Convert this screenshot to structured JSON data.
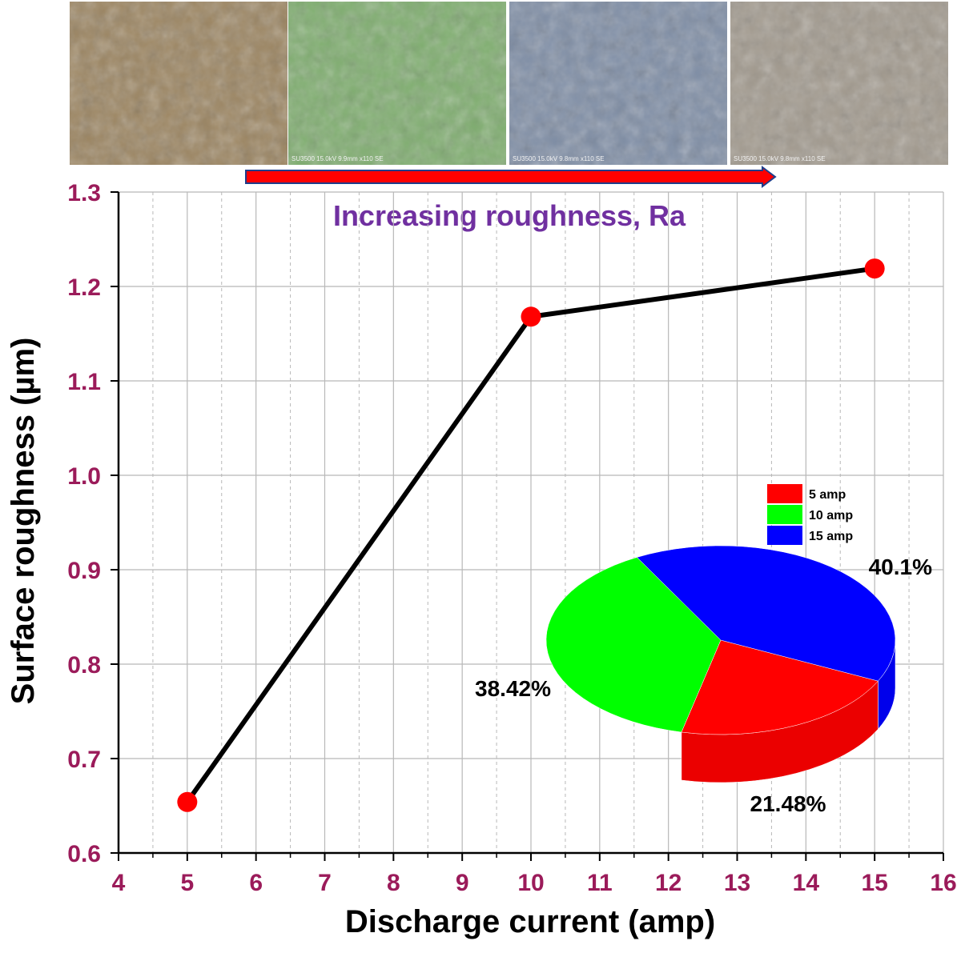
{
  "sem_images": [
    {
      "name": "sem-5-amp",
      "tone": "#9c8561",
      "caption": ""
    },
    {
      "name": "sem-10-amp",
      "tone": "#7fae6f",
      "caption": "SU3500 15.0kV 9.9mm x110 SE"
    },
    {
      "name": "sem-15-amp",
      "tone": "#7f8ea6",
      "caption": "SU3500 15.0kV 9.8mm x110 SE"
    },
    {
      "name": "sem-extra",
      "tone": "#a29a8e",
      "caption": "SU3500 15.0kV 9.8mm x110 SE"
    }
  ],
  "annotation": "Increasing roughness, Ra",
  "colors": {
    "axis_tick": "#9b1b5a",
    "annotation": "#7030a0",
    "arrow": "#ff0000",
    "arrow_edge": "#1f3d8a",
    "line": "#000000",
    "marker": "#ff0000",
    "grid": "#b8b8b8"
  },
  "chart_data": [
    {
      "type": "line",
      "title": "",
      "xlabel": "Discharge current (amp)",
      "ylabel": "Surface roughness (µm)",
      "xlim": [
        4,
        16
      ],
      "ylim": [
        0.6,
        1.3
      ],
      "xticks": [
        "4",
        "5",
        "6",
        "7",
        "8",
        "9",
        "10",
        "11",
        "12",
        "13",
        "14",
        "15",
        "16"
      ],
      "yticks": [
        "0.6",
        "0.7",
        "0.8",
        "0.9",
        "1.0",
        "1.1",
        "1.2",
        "1.3"
      ],
      "grid": true,
      "series": [
        {
          "x": [
            5,
            10,
            15
          ],
          "y": [
            0.654,
            1.168,
            1.219
          ]
        }
      ]
    },
    {
      "type": "pie",
      "style": "3d",
      "legend_position": "top",
      "slices": [
        {
          "label": "5 amp",
          "value": 21.48,
          "display": "21.48%",
          "color": "#ff0000"
        },
        {
          "label": "10 amp",
          "value": 38.42,
          "display": "38.42%",
          "color": "#00ff00"
        },
        {
          "label": "15 amp",
          "value": 40.1,
          "display": "40.1%",
          "color": "#0000ff"
        }
      ]
    }
  ]
}
